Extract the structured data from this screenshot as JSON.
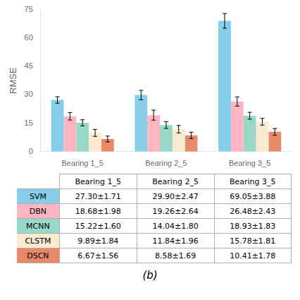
{
  "chart_data": {
    "type": "bar",
    "ylabel": "RMSE",
    "subtitle": "(b)",
    "categories": [
      "Bearing 1_5",
      "Bearing 2_5",
      "Bearing 3_5"
    ],
    "series": [
      {
        "name": "SVM",
        "color": "#87CEEB",
        "values": [
          27.3,
          29.9,
          69.05
        ],
        "errors": [
          1.71,
          2.47,
          3.88
        ],
        "table": [
          "27.30±1.71",
          "29.90±2.47",
          "69.05±3.88"
        ]
      },
      {
        "name": "DBN",
        "color": "#FFB6C1",
        "values": [
          18.68,
          19.26,
          26.48
        ],
        "errors": [
          1.98,
          2.64,
          2.43
        ],
        "table": [
          "18.68±1.98",
          "19.26±2.64",
          "26.48±2.43"
        ]
      },
      {
        "name": "MCNN",
        "color": "#98D8C8",
        "values": [
          15.22,
          14.04,
          18.93
        ],
        "errors": [
          1.6,
          1.8,
          1.83
        ],
        "table": [
          "15.22±1.60",
          "14.04±1.80",
          "18.93±1.83"
        ]
      },
      {
        "name": "CLSTM",
        "color": "#FAEBD0",
        "values": [
          9.89,
          11.84,
          15.78
        ],
        "errors": [
          1.84,
          1.96,
          1.81
        ],
        "table": [
          "9.89±1.84",
          "11.84±1.96",
          "15.78±1.81"
        ]
      },
      {
        "name": "DSCN",
        "color": "#E8896A",
        "values": [
          6.67,
          8.58,
          10.41
        ],
        "errors": [
          1.56,
          1.69,
          1.78
        ],
        "table": [
          "6.67±1.56",
          "8.58±1.69",
          "10.41±1.78"
        ]
      }
    ],
    "ylim": [
      0,
      75
    ],
    "yticks": [
      0,
      15,
      30,
      45,
      60,
      75
    ],
    "grid": false
  }
}
